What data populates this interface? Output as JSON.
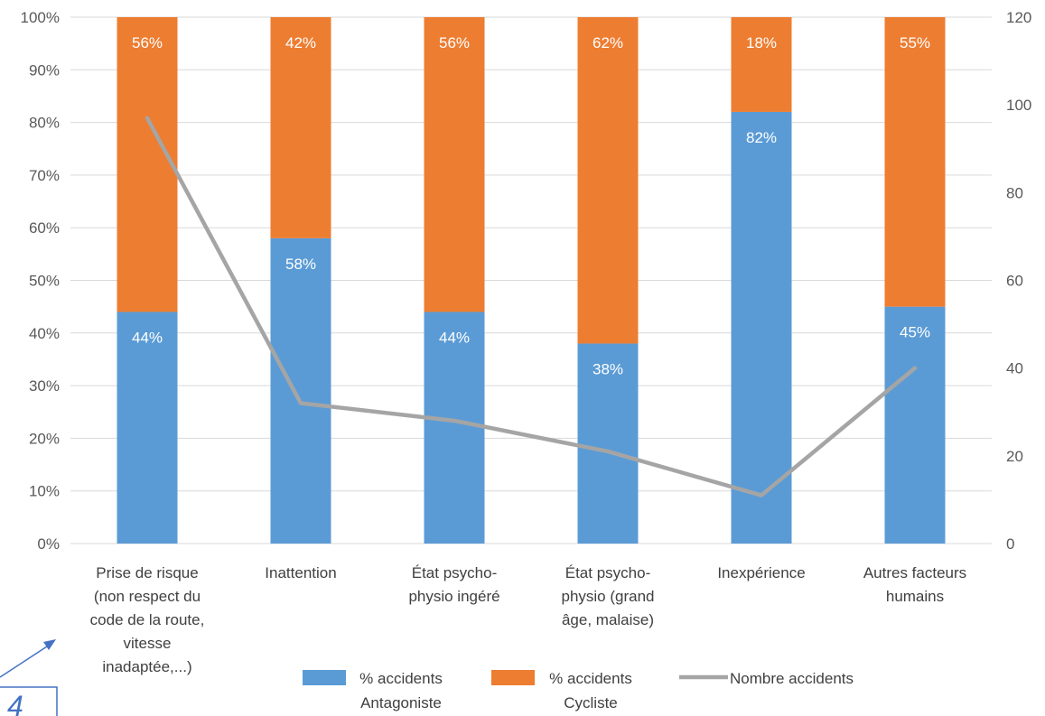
{
  "chart_data": {
    "type": "bar",
    "stacked": true,
    "percent_stacked": true,
    "categories": [
      [
        "Prise de risque",
        "(non respect du",
        "code de la route,",
        "vitesse",
        "inadaptée,...)"
      ],
      [
        "Inattention"
      ],
      [
        "État psycho-",
        "physio ingéré"
      ],
      [
        "État psycho-",
        "physio (grand",
        "âge, malaise)"
      ],
      [
        "Inexpérience"
      ],
      [
        "Autres facteurs",
        "humains"
      ]
    ],
    "series": [
      {
        "name": "% accidents Antagoniste",
        "legend_lines": [
          "% accidents",
          "Antagoniste"
        ],
        "type": "bar",
        "axis": "left",
        "values": [
          44,
          58,
          44,
          38,
          82,
          45
        ],
        "labels": [
          "44%",
          "58%",
          "44%",
          "38%",
          "82%",
          "45%"
        ]
      },
      {
        "name": "% accidents Cycliste",
        "legend_lines": [
          "% accidents",
          "Cycliste"
        ],
        "type": "bar",
        "axis": "left",
        "values": [
          56,
          42,
          56,
          62,
          18,
          55
        ],
        "labels": [
          "56%",
          "42%",
          "56%",
          "62%",
          "18%",
          "55%"
        ]
      },
      {
        "name": "Nombre accidents",
        "legend_lines": [
          "Nombre accidents"
        ],
        "type": "line",
        "axis": "right",
        "values": [
          97,
          32,
          28,
          21,
          11,
          40
        ]
      }
    ],
    "y_left": {
      "min": 0,
      "max": 100,
      "ticks": [
        "0%",
        "10%",
        "20%",
        "30%",
        "40%",
        "50%",
        "60%",
        "70%",
        "80%",
        "90%",
        "100%"
      ]
    },
    "y_right": {
      "min": 0,
      "max": 120,
      "ticks": [
        "0",
        "20",
        "40",
        "60",
        "80",
        "100",
        "120"
      ]
    },
    "grid": true,
    "legend_position": "bottom",
    "colors": {
      "antagoniste": "#5b9bd5",
      "cycliste": "#ed7d31",
      "line": "#a5a5a5",
      "grid": "#d9d9d9",
      "arrow": "#4472c4"
    }
  },
  "annotation": {
    "partial_text": "4"
  }
}
